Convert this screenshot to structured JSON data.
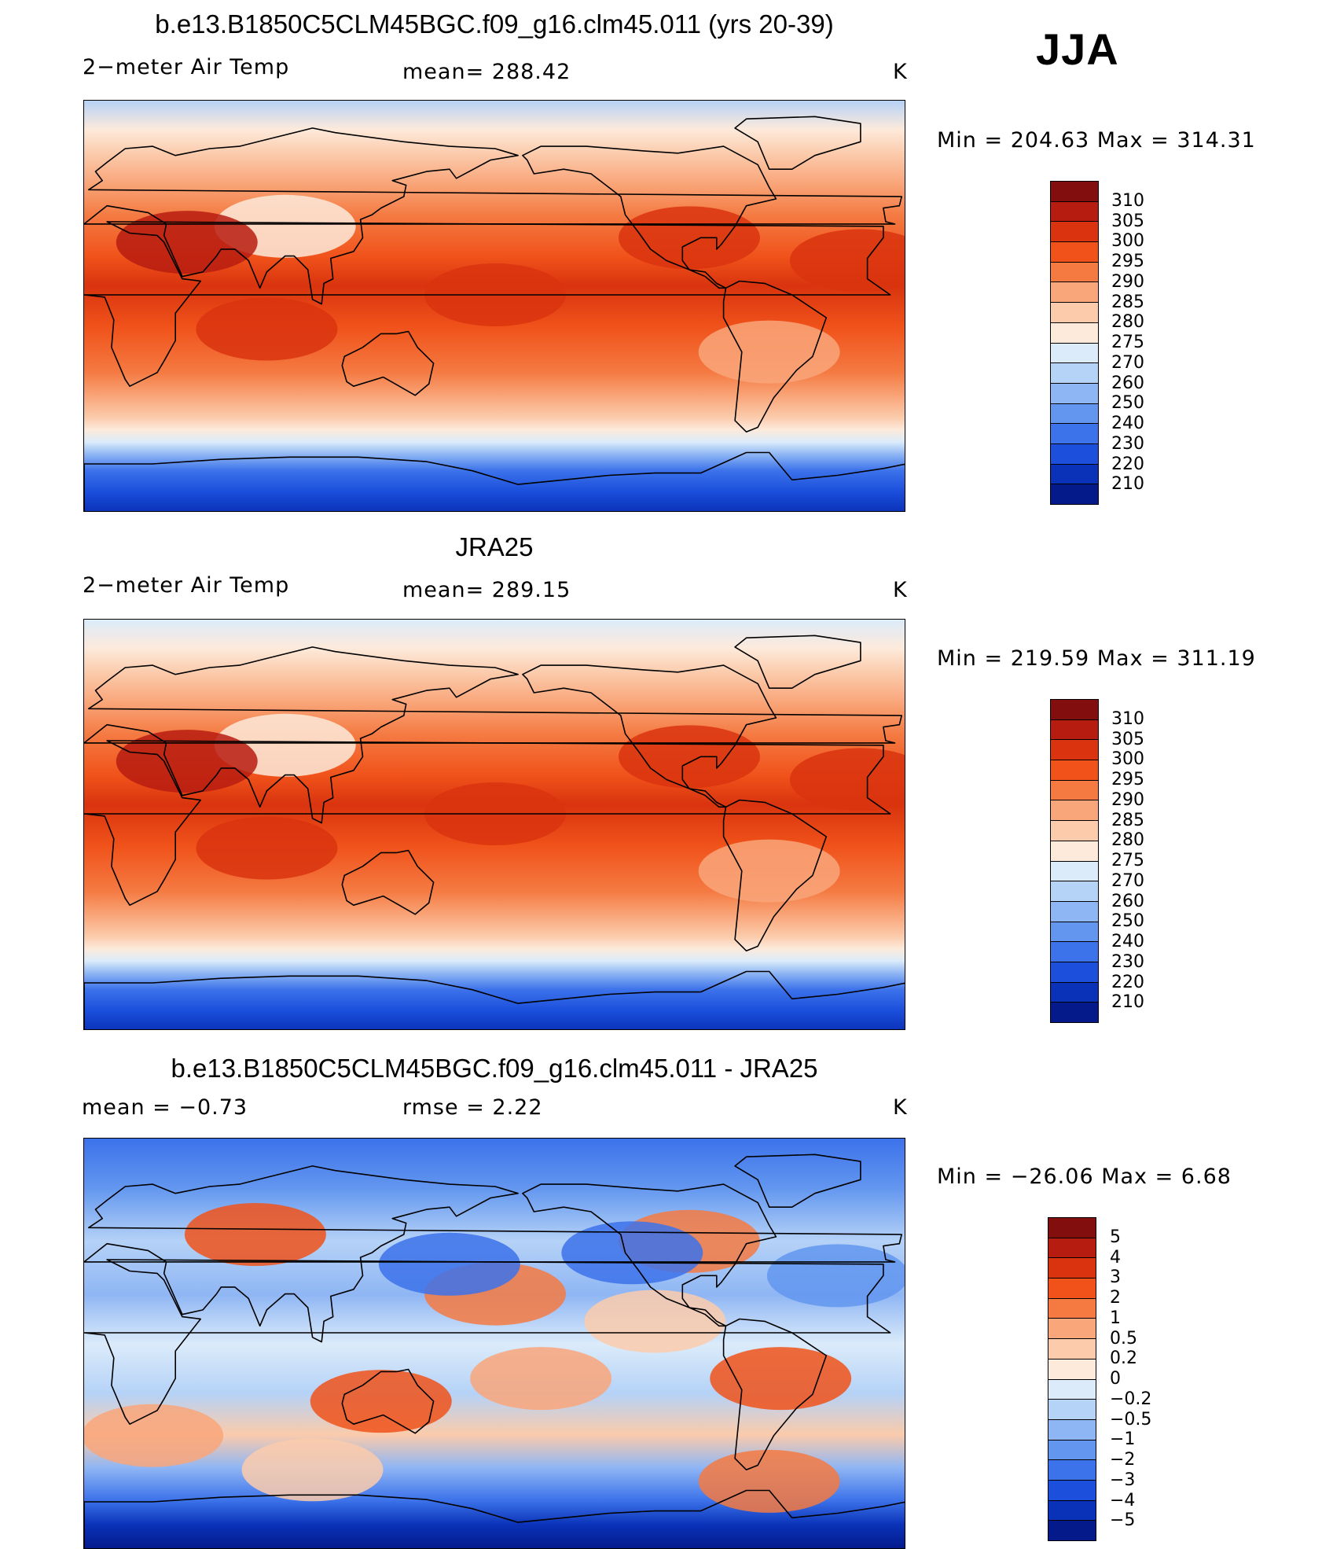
{
  "season": "JJA",
  "panels": [
    {
      "title": "b.e13.B1850C5CLM45BGC.f09_g16.clm45.011 (yrs 20-39)",
      "left_text": "2−meter Air Temp",
      "center_text": "mean=  288.42",
      "units": "K",
      "range_text": "Min  =  204.63  Max  =  314.31",
      "map_kind": "model",
      "colorbar": {
        "labels": [
          "310",
          "305",
          "300",
          "295",
          "290",
          "285",
          "280",
          "275",
          "270",
          "260",
          "250",
          "240",
          "230",
          "220",
          "210"
        ],
        "colors": [
          "#830e0e",
          "#b71c10",
          "#d9340f",
          "#f0521a",
          "#f47a42",
          "#f9a67a",
          "#fbcbab",
          "#fdeadb",
          "#dbebfa",
          "#b5d2f7",
          "#8fb6f4",
          "#6296ef",
          "#3c72ea",
          "#1b4fdc",
          "#0a32b8",
          "#04198a"
        ]
      }
    },
    {
      "title": "JRA25",
      "left_text": "2−meter Air Temp",
      "center_text": "mean=  289.15",
      "units": "K",
      "range_text": "Min  =  219.59  Max  =  311.19",
      "map_kind": "obs",
      "colorbar": {
        "labels": [
          "310",
          "305",
          "300",
          "295",
          "290",
          "285",
          "280",
          "275",
          "270",
          "260",
          "250",
          "240",
          "230",
          "220",
          "210"
        ],
        "colors": [
          "#830e0e",
          "#b71c10",
          "#d9340f",
          "#f0521a",
          "#f47a42",
          "#f9a67a",
          "#fbcbab",
          "#fdeadb",
          "#dbebfa",
          "#b5d2f7",
          "#8fb6f4",
          "#6296ef",
          "#3c72ea",
          "#1b4fdc",
          "#0a32b8",
          "#04198a"
        ]
      }
    },
    {
      "title": "b.e13.B1850C5CLM45BGC.f09_g16.clm45.011 - JRA25",
      "left_text": "mean  =    −0.73",
      "center_text": "rmse  =     2.22",
      "units": "K",
      "range_text": "Min  =  −26.06  Max  =      6.68",
      "map_kind": "diff",
      "colorbar": {
        "labels": [
          "5",
          "4",
          "3",
          "2",
          "1",
          "0.5",
          "0.2",
          "0",
          "−0.2",
          "−0.5",
          "−1",
          "−2",
          "−3",
          "−4",
          "−5"
        ],
        "colors": [
          "#830e0e",
          "#b71c10",
          "#d9340f",
          "#f0521a",
          "#f47a42",
          "#f9a67a",
          "#fbcbab",
          "#fdeadb",
          "#dbebfa",
          "#b5d2f7",
          "#8fb6f4",
          "#6296ef",
          "#3c72ea",
          "#1b4fdc",
          "#0a32b8",
          "#04198a"
        ]
      }
    }
  ]
}
